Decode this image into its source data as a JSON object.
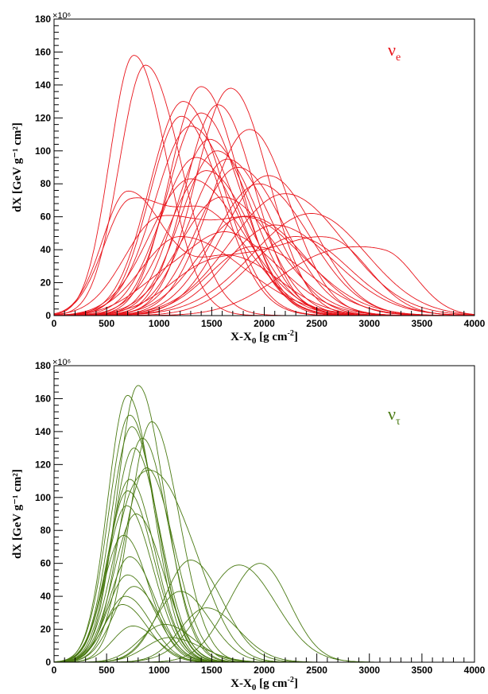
{
  "chart_data": [
    {
      "type": "line",
      "id": "top",
      "color": "#e8141b",
      "legend": {
        "base": "ν",
        "sub": "e"
      },
      "xlabel": {
        "pre": "X-X",
        "sub": "0",
        "post": " [g cm",
        "sup": "-2",
        "end": "]"
      },
      "ylabel": "dX [GeV g⁻¹ cm²]",
      "y_multiplier": "×10⁶",
      "xlim": [
        0,
        4000
      ],
      "ylim": [
        0,
        180
      ],
      "xticks": [
        0,
        500,
        1000,
        1500,
        2000,
        2500,
        3000,
        3500,
        4000
      ],
      "yticks": [
        0,
        20,
        40,
        60,
        80,
        100,
        120,
        140,
        160,
        180
      ],
      "series": [
        {
          "peaks": [
            [
              760,
              158,
              230,
              310
            ]
          ]
        },
        {
          "peaks": [
            [
              870,
              152,
              250,
              340
            ]
          ]
        },
        {
          "peaks": [
            [
              1230,
              130,
              320,
              380
            ]
          ]
        },
        {
          "peaks": [
            [
              1400,
              139,
              300,
              360
            ]
          ]
        },
        {
          "peaks": [
            [
              1680,
              138,
              330,
              360
            ]
          ]
        },
        {
          "peaks": [
            [
              1560,
              128,
              310,
              350
            ]
          ]
        },
        {
          "peaks": [
            [
              1210,
              121,
              300,
              380
            ]
          ]
        },
        {
          "peaks": [
            [
              1400,
              123,
              320,
              380
            ]
          ]
        },
        {
          "peaks": [
            [
              1480,
              107,
              320,
              400
            ]
          ]
        },
        {
          "peaks": [
            [
              1860,
              113,
              380,
              380
            ]
          ]
        },
        {
          "peaks": [
            [
              1300,
              115,
              340,
              420
            ]
          ]
        },
        {
          "peaks": [
            [
              1550,
              100,
              340,
              400
            ]
          ]
        },
        {
          "peaks": [
            [
              1650,
              95,
              360,
              420
            ]
          ]
        },
        {
          "peaks": [
            [
              1350,
              96,
              340,
              420
            ]
          ]
        },
        {
          "peaks": [
            [
              1750,
              90,
              380,
              440
            ]
          ]
        },
        {
          "peaks": [
            [
              1450,
              88,
              360,
              420
            ]
          ]
        },
        {
          "peaks": [
            [
              2040,
              85,
              420,
              440
            ]
          ]
        },
        {
          "peaks": [
            [
              1950,
              80,
              420,
              480
            ]
          ]
        },
        {
          "peaks": [
            [
              700,
              75,
              240,
              360
            ],
            [
              1700,
              35,
              350,
              450
            ]
          ]
        },
        {
          "peaks": [
            [
              720,
              68,
              250,
              380
            ],
            [
              1500,
              55,
              320,
              420
            ]
          ]
        },
        {
          "peaks": [
            [
              2200,
              74,
              520,
              560
            ]
          ]
        },
        {
          "peaks": [
            [
              2450,
              62,
              560,
              520
            ]
          ]
        },
        {
          "peaks": [
            [
              1300,
              83,
              380,
              500
            ]
          ]
        },
        {
          "peaks": [
            [
              1600,
              72,
              400,
              500
            ]
          ]
        },
        {
          "peaks": [
            [
              1000,
              58,
              330,
              500
            ],
            [
              2000,
              50,
              400,
              450
            ]
          ]
        },
        {
          "peaks": [
            [
              1800,
              60,
              420,
              560
            ]
          ]
        },
        {
          "peaks": [
            [
              1200,
              48,
              360,
              600
            ]
          ]
        },
        {
          "peaks": [
            [
              2100,
              55,
              450,
              560
            ]
          ]
        },
        {
          "peaks": [
            [
              2620,
              45,
              520,
              380
            ],
            [
              1500,
              30,
              400,
              500
            ]
          ]
        },
        {
          "peaks": [
            [
              3150,
              36,
              500,
              300
            ],
            [
              2400,
              22,
              450,
              400
            ]
          ]
        },
        {
          "peaks": [
            [
              2300,
              48,
              460,
              500
            ]
          ]
        },
        {
          "peaks": [
            [
              1900,
              42,
              420,
              520
            ]
          ]
        },
        {
          "peaks": [
            [
              1100,
              20,
              350,
              600
            ],
            [
              1700,
              38,
              380,
              480
            ]
          ]
        }
      ]
    },
    {
      "type": "line",
      "id": "bottom",
      "color": "#4a7a13",
      "legend": {
        "base": "ν",
        "sub": "τ"
      },
      "xlabel": {
        "pre": "X-X",
        "sub": "0",
        "post": " [g cm",
        "sup": "-2",
        "end": "]"
      },
      "ylabel": "dX [GeV g⁻¹ cm²]",
      "y_multiplier": "×10⁶",
      "xlim": [
        0,
        4000
      ],
      "ylim": [
        0,
        180
      ],
      "xticks": [
        0,
        500,
        1000,
        1500,
        2000,
        2500,
        3000,
        3500,
        4000
      ],
      "yticks": [
        0,
        20,
        40,
        60,
        80,
        100,
        120,
        140,
        160,
        180
      ],
      "series": [
        {
          "peaks": [
            [
              800,
              168,
              200,
              250
            ]
          ]
        },
        {
          "peaks": [
            [
              700,
              162,
              190,
              240
            ]
          ]
        },
        {
          "peaks": [
            [
              720,
              150,
              200,
              250
            ]
          ]
        },
        {
          "peaks": [
            [
              930,
              146,
              210,
              260
            ]
          ]
        },
        {
          "peaks": [
            [
              740,
              143,
              200,
              240
            ]
          ]
        },
        {
          "peaks": [
            [
              840,
              136,
              210,
              250
            ]
          ]
        },
        {
          "peaks": [
            [
              760,
              130,
              200,
              250
            ]
          ]
        },
        {
          "peaks": [
            [
              880,
              118,
              220,
              260
            ]
          ]
        },
        {
          "peaks": [
            [
              720,
              111,
              200,
              240
            ]
          ]
        },
        {
          "peaks": [
            [
              700,
              104,
              190,
              250
            ]
          ]
        },
        {
          "peaks": [
            [
              690,
              95,
              190,
              250
            ]
          ]
        },
        {
          "peaks": [
            [
              780,
              90,
              210,
              260
            ]
          ]
        },
        {
          "peaks": [
            [
              740,
              85,
              200,
              240
            ],
            [
              1150,
              80,
              250,
              300
            ]
          ]
        },
        {
          "peaks": [
            [
              660,
              77,
              190,
              240
            ]
          ]
        },
        {
          "peaks": [
            [
              720,
              64,
              190,
              240
            ]
          ]
        },
        {
          "peaks": [
            [
              700,
              53,
              190,
              250
            ]
          ]
        },
        {
          "peaks": [
            [
              760,
              46,
              200,
              240
            ]
          ]
        },
        {
          "peaks": [
            [
              680,
              40,
              190,
              240
            ]
          ]
        },
        {
          "peaks": [
            [
              650,
              35,
              180,
              240
            ]
          ]
        },
        {
          "peaks": [
            [
              1300,
              62,
              260,
              300
            ]
          ]
        },
        {
          "peaks": [
            [
              1760,
              59,
              330,
              350
            ]
          ]
        },
        {
          "peaks": [
            [
              1960,
              60,
              300,
              280
            ]
          ]
        },
        {
          "peaks": [
            [
              1200,
              43,
              240,
              280
            ]
          ]
        },
        {
          "peaks": [
            [
              1450,
              33,
              250,
              300
            ]
          ]
        },
        {
          "peaks": [
            [
              1050,
              23,
              230,
              280
            ]
          ]
        },
        {
          "peaks": [
            [
              1100,
              15,
              230,
              300
            ]
          ]
        },
        {
          "peaks": [
            [
              750,
              22,
              190,
              230
            ]
          ]
        }
      ]
    }
  ]
}
